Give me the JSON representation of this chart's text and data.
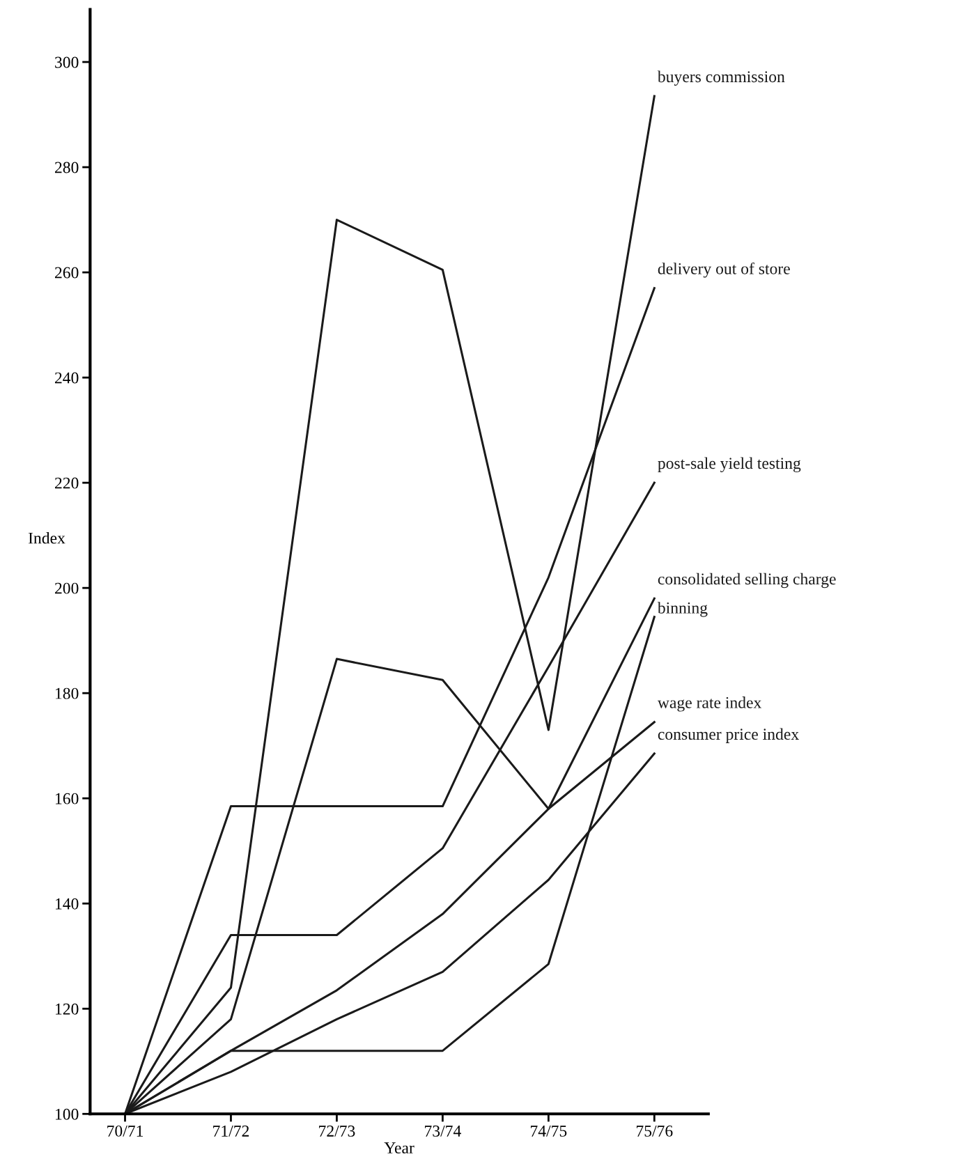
{
  "chart_data": {
    "type": "line",
    "xlabel": "Year",
    "ylabel": "Index",
    "categories": [
      "70/71",
      "71/72",
      "72/73",
      "73/74",
      "74/75",
      "75/76"
    ],
    "ylim": [
      100,
      310
    ],
    "yticks": [
      100,
      120,
      140,
      160,
      180,
      200,
      220,
      240,
      260,
      280,
      300
    ],
    "grid": false,
    "legend": false,
    "marker": "none",
    "line_style": "solid",
    "series": [
      {
        "name": "buyers commission",
        "color": "#1a1a1a",
        "values": [
          100,
          124,
          270,
          260.5,
          173,
          293.5
        ]
      },
      {
        "name": "delivery out of store",
        "color": "#1a1a1a",
        "values": [
          100,
          158.5,
          158.5,
          158.5,
          202,
          257
        ]
      },
      {
        "name": "post-sale yield testing",
        "color": "#1a1a1a",
        "values": [
          100,
          134,
          134,
          150.5,
          185,
          220
        ]
      },
      {
        "name": "consolidated selling charge",
        "color": "#1a1a1a",
        "values": [
          100,
          118,
          186.5,
          182.5,
          158,
          198
        ]
      },
      {
        "name": "binning",
        "color": "#1a1a1a",
        "values": [
          100,
          112,
          112,
          112,
          128.5,
          194.5
        ]
      },
      {
        "name": "wage rate index",
        "color": "#1a1a1a",
        "values": [
          100,
          112,
          123.5,
          138,
          158,
          174.5
        ]
      },
      {
        "name": "consumer price index",
        "color": "#1a1a1a",
        "values": [
          100,
          108,
          118,
          127,
          144.5,
          168.5
        ]
      }
    ]
  }
}
